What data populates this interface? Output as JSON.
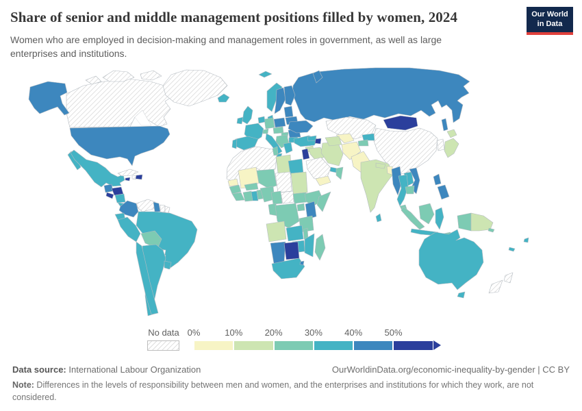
{
  "header": {
    "title": "Share of senior and middle management positions filled by women, 2024",
    "subtitle": "Women who are employed in decision-making and management roles in government, as well as large enterprises and institutions.",
    "logo": {
      "line1": "Our World",
      "line2": "in Data",
      "bg": "#12294d",
      "accent": "#e0403c"
    }
  },
  "legend": {
    "no_data_label": "No data",
    "ticks": [
      "0%",
      "10%",
      "20%",
      "30%",
      "40%",
      "50%"
    ],
    "buckets": [
      {
        "id": "0-10",
        "color": "#f7f4c5"
      },
      {
        "id": "10-20",
        "color": "#cde5b2"
      },
      {
        "id": "20-30",
        "color": "#7dcbb3"
      },
      {
        "id": "30-40",
        "color": "#44b3c4"
      },
      {
        "id": "40-50",
        "color": "#3d87be"
      },
      {
        "id": "50-plus",
        "color": "#2b3f9c"
      }
    ]
  },
  "footer": {
    "source_label": "Data source:",
    "source_value": " International Labour Organization",
    "link": "OurWorldinData.org/economic-inequality-by-gender | CC BY",
    "note_label": "Note:",
    "note_text": " Differences in the levels of responsibility between men and women, and the enterprises and institutions for which they work, are not considered."
  },
  "chart_data": {
    "type": "choropleth-map",
    "title": "Share of senior and middle management positions filled by women",
    "year": 2024,
    "unit": "% of senior and middle management positions",
    "bucket_labels": [
      "0-10%",
      "10-20%",
      "20-30%",
      "30-40%",
      "40-50%",
      "50%+",
      "No data"
    ],
    "regions": {
      "greenland": "no-data",
      "canada": "no-data",
      "alaska": "40-50",
      "usa": "40-50",
      "mexico": "30-40",
      "guatemala": "40-50",
      "honduras": "50-plus",
      "el-salvador": "50-plus",
      "nicaragua": "30-40",
      "costa-rica": "30-40",
      "panama": "40-50",
      "cuba": "no-data",
      "jamaica": "50-plus",
      "haiti": "no-data",
      "dominican-republic": "50-plus",
      "colombia": "40-50",
      "venezuela": "no-data",
      "guyana": "40-50",
      "suriname": "no-data",
      "french-guiana": "no-data",
      "ecuador": "30-40",
      "peru": "30-40",
      "brazil": "30-40",
      "bolivia": "20-30",
      "paraguay": "no-data",
      "chile": "30-40",
      "argentina": "30-40",
      "uruguay": "30-40",
      "iceland": "30-40",
      "svalbard": "30-40",
      "norway": "30-40",
      "sweden": "40-50",
      "finland": "40-50",
      "denmark": "30-40",
      "uk": "30-40",
      "ireland": "30-40",
      "baltics": "40-50",
      "belarus": "40-50",
      "poland": "40-50",
      "germany": "20-30",
      "netherlands-belgium": "30-40",
      "france": "30-40",
      "spain": "30-40",
      "portugal": "30-40",
      "switzerland": "20-30",
      "czechia-austria": "20-30",
      "hungary": "20-30",
      "balkans": "20-30",
      "italy": "30-40",
      "romania": "40-50",
      "bulgaria": "30-40",
      "greece": "30-40",
      "ukraine": "40-50",
      "russia": "40-50",
      "turkey": "30-40",
      "georgia-armenia": "30-40",
      "azerbaijan": "50-plus",
      "syria": "10-20",
      "jordan-israel": "50-plus",
      "iraq": "10-20",
      "iran": "10-20",
      "saudi-arabia": "no-data",
      "uae-qatar": "30-40",
      "oman": "20-30",
      "yemen": "0-10",
      "egypt": "30-40",
      "nw-africa": "no-data",
      "tunisia": "20-30",
      "libya": "10-20",
      "mali": "0-10",
      "senegal": "0-10",
      "guinea": "20-30",
      "sierra-leone-liberia": "20-30",
      "ivory-coast": "20-30",
      "ghana": "30-40",
      "togo-benin": "20-30",
      "burkina-faso": "20-30",
      "niger": "20-30",
      "chad": "no-data",
      "nigeria": "20-30",
      "cameroon": "20-30",
      "central-african-republic": "no-data",
      "sudan": "10-20",
      "south-sudan": "20-30",
      "ethiopia": "20-30",
      "somalia": "20-30",
      "uganda": "20-30",
      "kenya": "40-50",
      "congo-gabon": "20-30",
      "drc": "20-30",
      "tanzania": "20-30",
      "angola": "10-20",
      "zambia": "30-40",
      "malawi": "20-30",
      "mozambique": "30-40",
      "zimbabwe": "30-40",
      "namibia": "40-50",
      "botswana": "50-plus",
      "south-africa": "30-40",
      "eswatini": "40-50",
      "madagascar": "20-30",
      "kazakhstan": "no-data",
      "uzbekistan": "0-10",
      "turkmenistan": "10-20",
      "kyrgyzstan": "30-40",
      "tajikistan": "20-30",
      "afghanistan": "0-10",
      "pakistan": "0-10",
      "india": "10-20",
      "nepal": "10-20",
      "bangladesh": "0-10",
      "sri-lanka": "30-40",
      "china": "no-data",
      "mongolia": "50-plus",
      "korea": "no-data",
      "japan": "10-20",
      "myanmar": "40-50",
      "thailand": "30-40",
      "laos": "30-40",
      "vietnam": "40-50",
      "cambodia": "20-30",
      "malaysia": "20-30",
      "sumatra": "20-30",
      "borneo": "20-30",
      "java": "30-40",
      "sulawesi": "30-40",
      "timor": "20-30",
      "west-papua": "20-30",
      "papua-new-guinea": "10-20",
      "philippines": "40-50",
      "australia": "30-40",
      "tasmania": "30-40",
      "new-zealand": "no-data",
      "fiji": "30-40",
      "solomon-islands": "20-30",
      "new-caledonia": "30-40"
    }
  }
}
